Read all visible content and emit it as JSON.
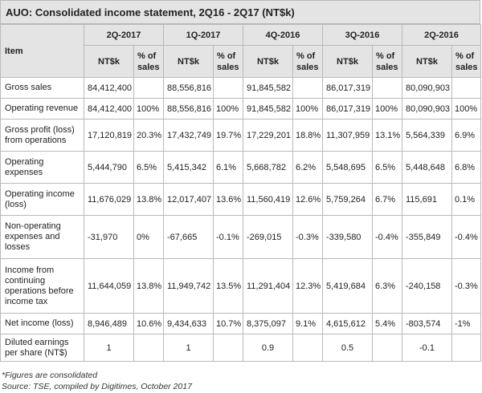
{
  "title": "AUO: Consolidated income statement, 2Q16 - 2Q17 (NT$k)",
  "header": {
    "item_label": "Item",
    "periods": [
      "2Q-2017",
      "1Q-2017",
      "4Q-2016",
      "3Q-2016",
      "2Q-2016"
    ],
    "value_label": "NT$k",
    "pct_label": "% of sales"
  },
  "rows": [
    {
      "label": "Gross sales",
      "cells": [
        "84,412,400",
        "",
        "88,556,816",
        "",
        "91,845,582",
        "",
        "86,017,319",
        "",
        "80,090,903",
        ""
      ]
    },
    {
      "label": "Operating revenue",
      "cells": [
        "84,412,400",
        "100%",
        "88,556,816",
        "100%",
        "91,845,582",
        "100%",
        "86,017,319",
        "100%",
        "80,090,903",
        "100%"
      ]
    },
    {
      "label": "Gross profit (loss) from operations",
      "cells": [
        "17,120,819",
        "20.3%",
        "17,432,749",
        "19.7%",
        "17,229,201",
        "18.8%",
        "11,307,959",
        "13.1%",
        "5,564,339",
        "6.9%"
      ]
    },
    {
      "label": "Operating expenses",
      "cells": [
        "5,444,790",
        "6.5%",
        "5,415,342",
        "6.1%",
        "5,668,782",
        "6.2%",
        "5,548,695",
        "6.5%",
        "5,448,648",
        "6.8%"
      ]
    },
    {
      "label": "Operating income (loss)",
      "cells": [
        "11,676,029",
        "13.8%",
        "12,017,407",
        "13.6%",
        "11,560,419",
        "12.6%",
        "5,759,264",
        "6.7%",
        "115,691",
        "0.1%"
      ]
    },
    {
      "label": "Non-operating expenses and losses",
      "cells": [
        "-31,970",
        "0%",
        "-67,665",
        "-0.1%",
        "-269,015",
        "-0.3%",
        "-339,580",
        "-0.4%",
        "-355,849",
        "-0.4%"
      ]
    },
    {
      "label": "Income from continuing operations before income tax",
      "cells": [
        "11,644,059",
        "13.8%",
        "11,949,742",
        "13.5%",
        "11,291,404",
        "12.3%",
        "5,419,684",
        "6.3%",
        "-240,158",
        "-0.3%"
      ]
    },
    {
      "label": "Net income (loss)",
      "cells": [
        "8,946,489",
        "10.6%",
        "9,434,633",
        "10.7%",
        "8,375,097",
        "9.1%",
        "4,615,612",
        "5.4%",
        "-803,574",
        "-1%"
      ]
    },
    {
      "label": "Diluted earnings per share (NT$)",
      "cells": [
        "1",
        "",
        "1",
        "",
        "0.9",
        "",
        "0.5",
        "",
        "-0.1",
        ""
      ]
    }
  ],
  "notes": {
    "consolidated": "*Figures are consolidated",
    "source": "Source: TSE, compiled by Digitimes, October 2017"
  }
}
